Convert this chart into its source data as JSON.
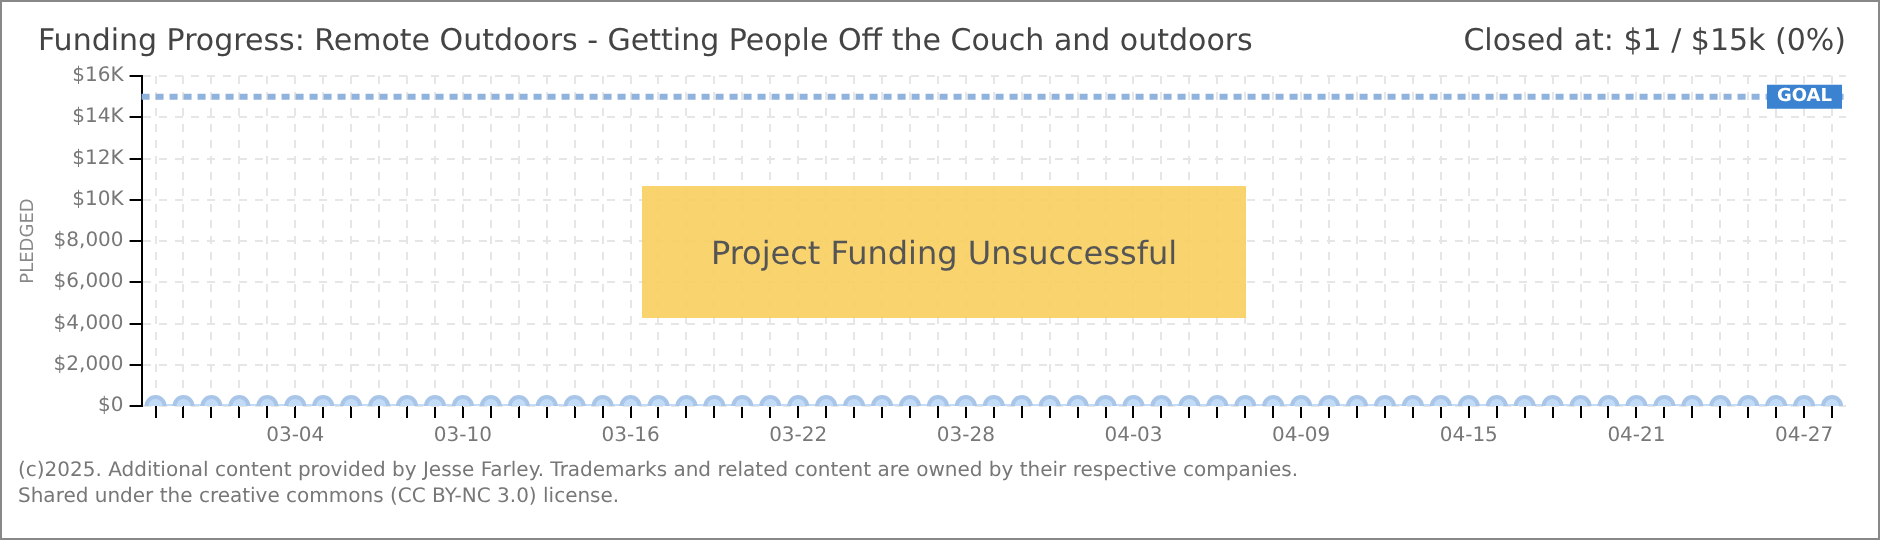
{
  "chart_data": {
    "type": "line",
    "title": "Funding Progress: Remote Outdoors - Getting People Off the Couch and outdoors",
    "subtitle": "Closed at: $1 / $15k (0%)",
    "ylabel": "PLEDGED",
    "categories": [
      null,
      null,
      null,
      null,
      null,
      "03-04",
      null,
      null,
      null,
      null,
      null,
      "03-10",
      null,
      null,
      null,
      null,
      null,
      "03-16",
      null,
      null,
      null,
      null,
      null,
      "03-22",
      null,
      null,
      null,
      null,
      null,
      "03-28",
      null,
      null,
      null,
      null,
      null,
      "04-03",
      null,
      null,
      null,
      null,
      null,
      "04-09",
      null,
      null,
      null,
      null,
      null,
      "04-15",
      null,
      null,
      null,
      null,
      null,
      "04-21",
      null,
      null,
      null,
      null,
      null,
      "04-27",
      null
    ],
    "series": [
      {
        "color": "#c2dbf7",
        "values": [
          0,
          0,
          0,
          0,
          0,
          0,
          0,
          0,
          0,
          0,
          0,
          0,
          0,
          0,
          0,
          0,
          0,
          0,
          0,
          0,
          0,
          0,
          0,
          0,
          0,
          0,
          0,
          0,
          0,
          0,
          0,
          0,
          0,
          0,
          0,
          0,
          0,
          0,
          0,
          0,
          0,
          0,
          0,
          0,
          0,
          0,
          0,
          0,
          0,
          0,
          0,
          0,
          0,
          0,
          0,
          0,
          0,
          0,
          0,
          0,
          0
        ]
      }
    ],
    "ylim": [
      0,
      16000
    ],
    "yticks": [
      {
        "value": 0,
        "label": "$0"
      },
      {
        "value": 2000,
        "label": "$2,000"
      },
      {
        "value": 4000,
        "label": "$4,000"
      },
      {
        "value": 6000,
        "label": "$6,000"
      },
      {
        "value": 8000,
        "label": "$8,000"
      },
      {
        "value": 10000,
        "label": "$10K"
      },
      {
        "value": 12000,
        "label": "$12K"
      },
      {
        "value": 14000,
        "label": "$14K"
      },
      {
        "value": 16000,
        "label": "$16K"
      }
    ],
    "ref_lines": [
      {
        "axis": "y",
        "value": 15000,
        "label": "GOAL",
        "color": "#8fb3dd",
        "line_style": "dashed"
      }
    ],
    "grid": true,
    "marker": "circle",
    "line_style": "solid",
    "legend": false,
    "annotations": [
      "Project Funding Unsuccessful",
      "(c)2025. Additional content provided by Jesse Farley. Trademarks and related content are owned by their respective companies.",
      "Shared under the creative commons (CC BY-NC 3.0) license."
    ]
  }
}
